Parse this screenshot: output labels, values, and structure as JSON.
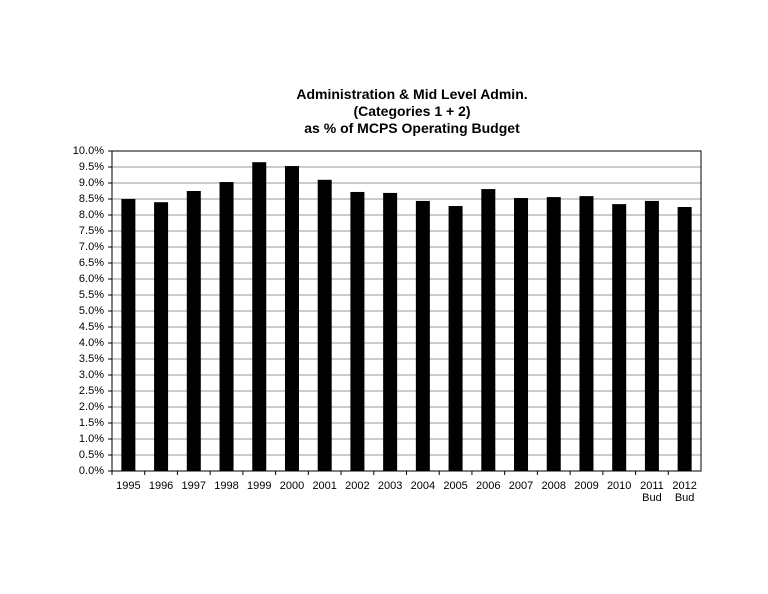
{
  "chart_data": {
    "type": "bar",
    "title": "Administration & Mid Level Admin.\n(Categories 1 + 2)\nas % of MCPS Operating Budget",
    "categories": [
      "1995",
      "1996",
      "1997",
      "1998",
      "1999",
      "2000",
      "2001",
      "2002",
      "2003",
      "2004",
      "2005",
      "2006",
      "2007",
      "2008",
      "2009",
      "2010",
      "2011\nBud",
      "2012\nBud"
    ],
    "values": [
      8.5,
      8.4,
      8.75,
      9.03,
      9.65,
      9.53,
      9.1,
      8.72,
      8.69,
      8.44,
      8.28,
      8.81,
      8.53,
      8.56,
      8.59,
      8.34,
      8.44,
      8.25
    ],
    "color": "#000000",
    "ylim": [
      0,
      10
    ],
    "yticks": [
      {
        "value": 0,
        "label": "0.0%"
      },
      {
        "value": 0.5,
        "label": "0.5%"
      },
      {
        "value": 1,
        "label": "1.0%"
      },
      {
        "value": 1.5,
        "label": "1.5%"
      },
      {
        "value": 2,
        "label": "2.0%"
      },
      {
        "value": 2.5,
        "label": "2.5%"
      },
      {
        "value": 3,
        "label": "3.0%"
      },
      {
        "value": 3.5,
        "label": "3.5%"
      },
      {
        "value": 4,
        "label": "4.0%"
      },
      {
        "value": 4.5,
        "label": "4.5%"
      },
      {
        "value": 5,
        "label": "5.0%"
      },
      {
        "value": 5.5,
        "label": "5.5%"
      },
      {
        "value": 6,
        "label": "6.0%"
      },
      {
        "value": 6.5,
        "label": "6.5%"
      },
      {
        "value": 7,
        "label": "7.0%"
      },
      {
        "value": 7.5,
        "label": "7.5%"
      },
      {
        "value": 8,
        "label": "8.0%"
      },
      {
        "value": 8.5,
        "label": "8.5%"
      },
      {
        "value": 9,
        "label": "9.0%"
      },
      {
        "value": 9.5,
        "label": "9.5%"
      },
      {
        "value": 10,
        "label": "10.0%"
      }
    ],
    "grid": true
  }
}
